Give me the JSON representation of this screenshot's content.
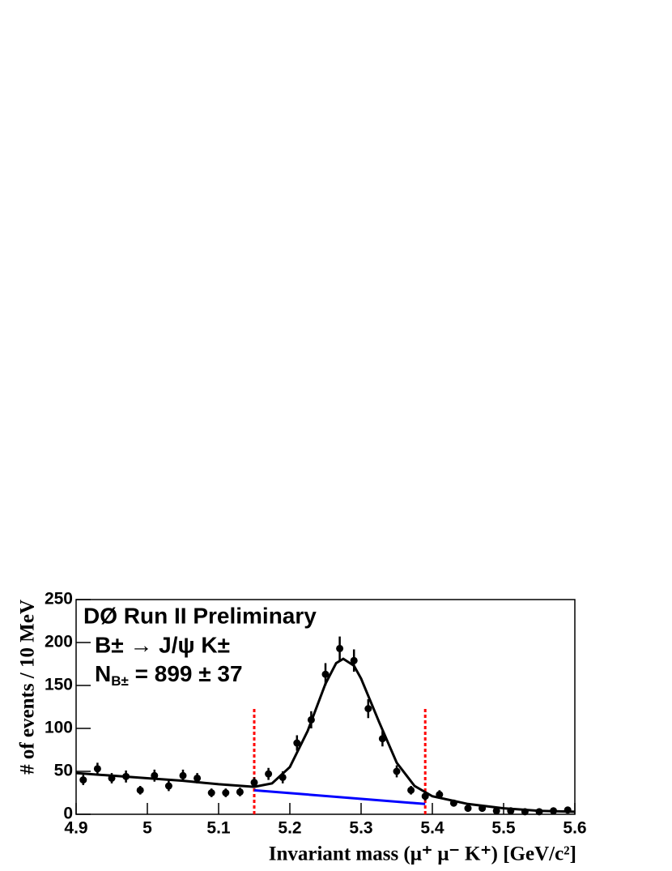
{
  "chart_data": {
    "type": "scatter",
    "annotations": [
      "DØ Run II Preliminary",
      "B± → J/ψ K±"
    ],
    "yield_label": {
      "main": "N",
      "sub": "B±",
      "rest": " = 899 ± 37"
    },
    "x_label": "Invariant mass (μ⁺ μ⁻ K⁺)  [GeV/c²]",
    "y_label": "# of events / 10 MeV",
    "xlim": [
      4.9,
      5.6
    ],
    "ylim": [
      0,
      250
    ],
    "xticks": [
      4.9,
      5,
      5.1,
      5.2,
      5.3,
      5.4,
      5.5,
      5.6
    ],
    "yticks": [
      0,
      50,
      100,
      150,
      200,
      250
    ],
    "x": [
      4.91,
      4.93,
      4.95,
      4.97,
      4.99,
      5.01,
      5.03,
      5.05,
      5.07,
      5.09,
      5.11,
      5.13,
      5.15,
      5.17,
      5.19,
      5.21,
      5.23,
      5.25,
      5.27,
      5.29,
      5.31,
      5.33,
      5.35,
      5.37,
      5.39,
      5.41,
      5.43,
      5.45,
      5.47,
      5.49,
      5.51,
      5.53,
      5.55,
      5.57,
      5.59
    ],
    "values": [
      40,
      53,
      42,
      44,
      28,
      45,
      33,
      45,
      42,
      25,
      25,
      26,
      37,
      47,
      43,
      83,
      110,
      163,
      193,
      179,
      123,
      88,
      50,
      28,
      21,
      23,
      13,
      7,
      7,
      4,
      4,
      3,
      3,
      4,
      5
    ],
    "errors": [
      6,
      7,
      6,
      7,
      5,
      7,
      6,
      7,
      6,
      5,
      5,
      5,
      6,
      7,
      7,
      9,
      10,
      13,
      14,
      13,
      11,
      9,
      7,
      5,
      5,
      5,
      4,
      3,
      3,
      2,
      2,
      2,
      2,
      2,
      2
    ],
    "color": "#000000",
    "fit": {
      "color": "#000000",
      "x": [
        4.9,
        4.95,
        5.0,
        5.05,
        5.1,
        5.15,
        5.175,
        5.2,
        5.225,
        5.25,
        5.265,
        5.275,
        5.29,
        5.3,
        5.325,
        5.35,
        5.375,
        5.4,
        5.45,
        5.5,
        5.55,
        5.6
      ],
      "values": [
        48,
        45,
        42,
        39,
        35,
        32,
        36,
        55,
        97,
        152,
        176,
        181,
        173,
        158,
        108,
        60,
        33,
        21,
        12,
        7,
        4,
        3
      ]
    },
    "background": {
      "color": "#0000ff",
      "x": [
        5.15,
        5.39
      ],
      "values": [
        28,
        12
      ]
    },
    "window": {
      "color": "#ff0000",
      "x": [
        5.15,
        5.39
      ],
      "top": 124
    }
  }
}
